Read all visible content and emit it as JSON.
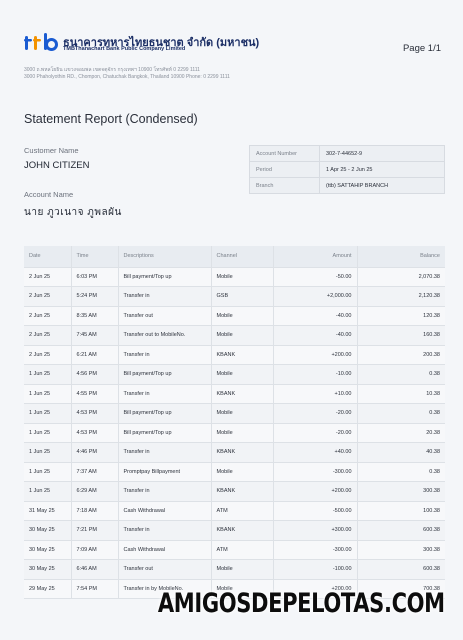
{
  "header": {
    "bank_name_th": "ธนาคารทหารไทยธนชาต จำกัด (มหาชน)",
    "bank_name_en": "TMBThanachart Bank Public Company Limited",
    "page": "Page 1/1",
    "address_th": "3000 ถ.พหลโยธิน แขวงจอมพล เขตจตุจักร กรุงเทพฯ 10900 โทรศัพท์ 0 2299 1111",
    "address_en": "3000 Phaholyothin RD., Chompon, Chatuchak Bangkok, Thailand 10900 Phone: 0 2299 1111"
  },
  "report": {
    "title": "Statement Report (Condensed)",
    "customer_label": "Customer Name",
    "customer_name": "JOHN CITIZEN",
    "account_label": "Account Name",
    "account_name": "นาย ภูวเนาจ ภูพลผัน"
  },
  "account_info": [
    {
      "label": "Account Number",
      "value": "302-7-44652-9"
    },
    {
      "label": "Period",
      "value": "1 Apr 25 - 2 Jun 25"
    },
    {
      "label": "Branch",
      "value": "(ttb) SATTAHIP BRANCH"
    }
  ],
  "table": {
    "headers": [
      "Date",
      "Time",
      "Descriptions",
      "Channel",
      "Amount",
      "Balance"
    ],
    "rows": [
      [
        "2 Jun 25",
        "6:03 PM",
        "Bill payment/Top up",
        "Mobile",
        "-50.00",
        "2,070.38"
      ],
      [
        "2 Jun 25",
        "5:24 PM",
        "Transfer in",
        "GSB",
        "+2,000.00",
        "2,120.38"
      ],
      [
        "2 Jun 25",
        "8:35 AM",
        "Transfer out",
        "Mobile",
        "-40.00",
        "120.38"
      ],
      [
        "2 Jun 25",
        "7:45 AM",
        "Transfer out to MobileNo.",
        "Mobile",
        "-40.00",
        "160.38"
      ],
      [
        "2 Jun 25",
        "6:21 AM",
        "Transfer in",
        "KBANK",
        "+200.00",
        "200.38"
      ],
      [
        "1 Jun 25",
        "4:56 PM",
        "Bill payment/Top up",
        "Mobile",
        "-10.00",
        "0.38"
      ],
      [
        "1 Jun 25",
        "4:55 PM",
        "Transfer in",
        "KBANK",
        "+10.00",
        "10.38"
      ],
      [
        "1 Jun 25",
        "4:53 PM",
        "Bill payment/Top up",
        "Mobile",
        "-20.00",
        "0.38"
      ],
      [
        "1 Jun 25",
        "4:53 PM",
        "Bill payment/Top up",
        "Mobile",
        "-20.00",
        "20.38"
      ],
      [
        "1 Jun 25",
        "4:46 PM",
        "Transfer in",
        "KBANK",
        "+40.00",
        "40.38"
      ],
      [
        "1 Jun 25",
        "7:37 AM",
        "Promptpay Billpayment",
        "Mobile",
        "-300.00",
        "0.38"
      ],
      [
        "1 Jun 25",
        "6:29 AM",
        "Transfer in",
        "KBANK",
        "+200.00",
        "300.38"
      ],
      [
        "31 May 25",
        "7:18 AM",
        "Cash Withdrawal",
        "ATM",
        "-500.00",
        "100.38"
      ],
      [
        "30 May 25",
        "7:21 PM",
        "Transfer in",
        "KBANK",
        "+300.00",
        "600.38"
      ],
      [
        "30 May 25",
        "7:09 AM",
        "Cash Withdrawal",
        "ATM",
        "-300.00",
        "300.38"
      ],
      [
        "30 May 25",
        "6:46 AM",
        "Transfer out",
        "Mobile",
        "-100.00",
        "600.38"
      ],
      [
        "29 May 25",
        "7:54 PM",
        "Transfer in by MobileNo.",
        "Mobile",
        "+200.00",
        "700.38"
      ]
    ]
  },
  "watermark": "AMIGOSDEPELOTAS.COM",
  "colors": {
    "brand_navy": "#1c2f66",
    "brand_orange": "#f39200",
    "brand_blue": "#1a5bd1"
  }
}
